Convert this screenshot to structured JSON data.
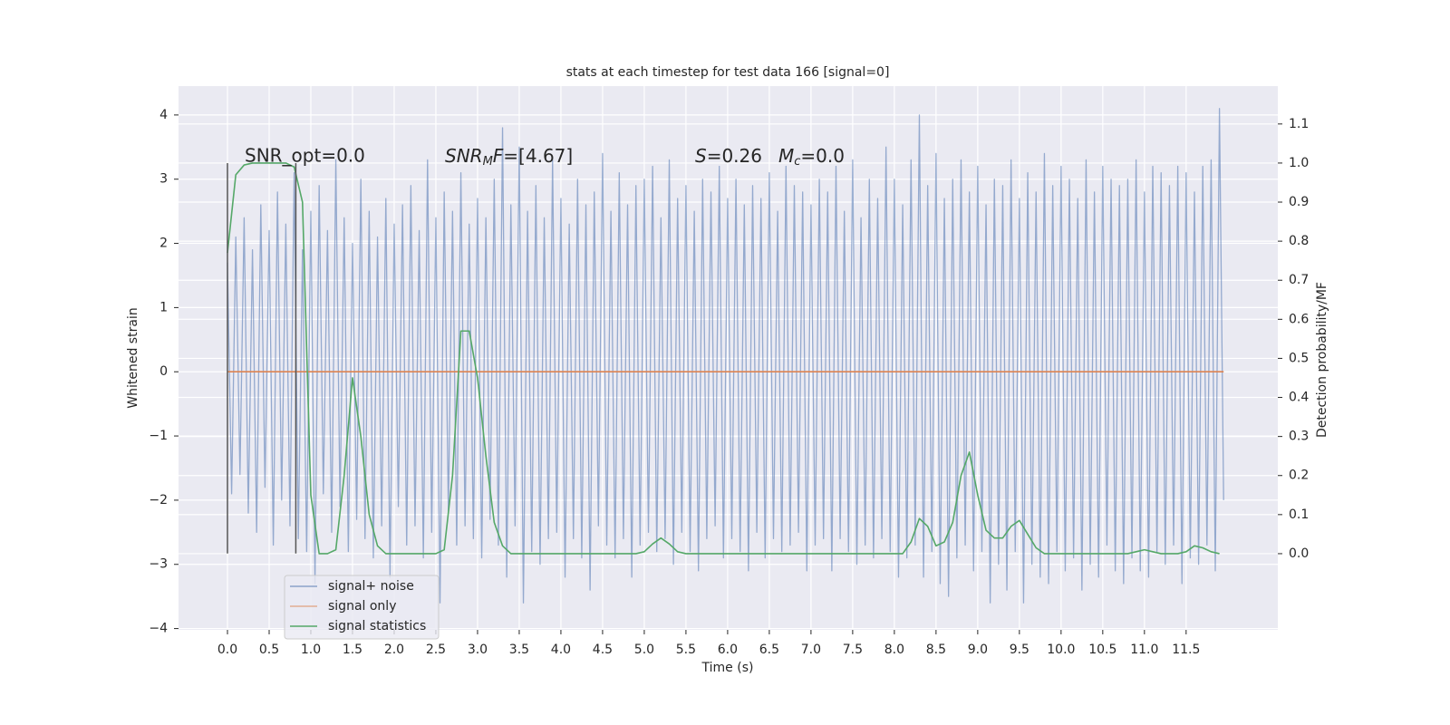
{
  "chart_data": {
    "type": "line",
    "title": "stats at each timestep for test data 166 [signal=0]",
    "x_label": "Time (s)",
    "y_label": "Whitened strain",
    "y2_label": "Detection probability/MF",
    "xlim": [
      -0.587,
      12.6
    ],
    "ylim": [
      -4.02,
      4.45
    ],
    "y2lim": [
      -0.195,
      1.197
    ],
    "xticks": [
      {
        "value": 0,
        "label": "0.0"
      },
      0.5,
      {
        "value": 1,
        "label": "1.0"
      },
      1.5,
      {
        "value": 2,
        "label": "2.0"
      },
      2.5,
      {
        "value": 3,
        "label": "3.0"
      },
      3.5,
      {
        "value": 4,
        "label": "4.0"
      },
      4.5,
      {
        "value": 5,
        "label": "5.0"
      },
      5.5,
      {
        "value": 6,
        "label": "6.0"
      },
      6.5,
      {
        "value": 7,
        "label": "7.0"
      },
      7.5,
      {
        "value": 8,
        "label": "8.0"
      },
      8.5,
      {
        "value": 9,
        "label": "9.0"
      },
      9.5,
      {
        "value": 10,
        "label": "10.0"
      },
      10.5,
      {
        "value": 11,
        "label": "11.0"
      },
      11.5
    ],
    "yticks": [
      {
        "value": -4,
        "label": "−4"
      },
      {
        "value": -3,
        "label": "−3"
      },
      {
        "value": -2,
        "label": "−2"
      },
      {
        "value": -1,
        "label": "−1"
      },
      0,
      1,
      2,
      3,
      4
    ],
    "y2ticks": [
      {
        "value": 0,
        "label": "0.0"
      },
      0.1,
      0.2,
      0.3,
      0.4,
      0.5,
      0.6,
      0.7,
      0.8,
      0.9,
      {
        "value": 1,
        "label": "1.0"
      },
      1.1
    ],
    "grid": true,
    "legend": "lower left",
    "annotations": [
      {
        "text": "SNR_opt=0.0"
      },
      {
        "parts": [
          "SNR",
          "M",
          "F",
          "=[4.67]"
        ]
      },
      {
        "parts": [
          "S",
          "=0.26"
        ]
      },
      {
        "parts": [
          "M",
          "c",
          "=0.0"
        ]
      }
    ],
    "vlines": {
      "x": [
        0,
        0.82
      ],
      "ymin": -2.83,
      "ymax": 3.25,
      "color": "#555555"
    },
    "series": [
      {
        "name": "signal+ noise",
        "color": "#4c72b0",
        "axis": "y",
        "x": [
          0,
          0.05,
          0.1,
          0.15,
          0.2,
          0.25,
          0.3,
          0.35,
          0.4,
          0.45,
          0.5,
          0.55,
          0.6,
          0.65,
          0.7,
          0.75,
          0.8,
          0.85,
          0.9,
          0.95,
          1,
          1.05,
          1.1,
          1.15,
          1.2,
          1.25,
          1.3,
          1.35,
          1.4,
          1.45,
          1.5,
          1.55,
          1.6,
          1.65,
          1.7,
          1.75,
          1.8,
          1.85,
          1.9,
          1.95,
          2,
          2.05,
          2.1,
          2.15,
          2.2,
          2.25,
          2.3,
          2.35,
          2.4,
          2.45,
          2.5,
          2.55,
          2.6,
          2.65,
          2.7,
          2.75,
          2.8,
          2.85,
          2.9,
          2.95,
          3,
          3.05,
          3.1,
          3.15,
          3.2,
          3.25,
          3.3,
          3.35,
          3.4,
          3.45,
          3.5,
          3.55,
          3.6,
          3.65,
          3.7,
          3.75,
          3.8,
          3.85,
          3.9,
          3.95,
          4,
          4.05,
          4.1,
          4.15,
          4.2,
          4.25,
          4.3,
          4.35,
          4.4,
          4.45,
          4.5,
          4.55,
          4.6,
          4.65,
          4.7,
          4.75,
          4.8,
          4.85,
          4.9,
          4.95,
          5,
          5.05,
          5.1,
          5.15,
          5.2,
          5.25,
          5.3,
          5.35,
          5.4,
          5.45,
          5.5,
          5.55,
          5.6,
          5.65,
          5.7,
          5.75,
          5.8,
          5.85,
          5.9,
          5.95,
          6,
          6.05,
          6.1,
          6.15,
          6.2,
          6.25,
          6.3,
          6.35,
          6.4,
          6.45,
          6.5,
          6.55,
          6.6,
          6.65,
          6.7,
          6.75,
          6.8,
          6.85,
          6.9,
          6.95,
          7,
          7.05,
          7.1,
          7.15,
          7.2,
          7.25,
          7.3,
          7.35,
          7.4,
          7.45,
          7.5,
          7.55,
          7.6,
          7.65,
          7.7,
          7.75,
          7.8,
          7.85,
          7.9,
          7.95,
          8,
          8.05,
          8.1,
          8.15,
          8.2,
          8.25,
          8.3,
          8.35,
          8.4,
          8.45,
          8.5,
          8.55,
          8.6,
          8.65,
          8.7,
          8.75,
          8.8,
          8.85,
          8.9,
          8.95,
          9,
          9.05,
          9.1,
          9.15,
          9.2,
          9.25,
          9.3,
          9.35,
          9.4,
          9.45,
          9.5,
          9.55,
          9.6,
          9.65,
          9.7,
          9.75,
          9.8,
          9.85,
          9.9,
          9.95,
          10,
          10.05,
          10.1,
          10.15,
          10.2,
          10.25,
          10.3,
          10.35,
          10.4,
          10.45,
          10.5,
          10.55,
          10.6,
          10.65,
          10.7,
          10.75,
          10.8,
          10.85,
          10.9,
          10.95,
          11,
          11.05,
          11.1,
          11.15,
          11.2,
          11.25,
          11.3,
          11.35,
          11.4,
          11.45,
          11.5,
          11.55,
          11.6,
          11.65,
          11.7,
          11.75,
          11.8,
          11.85,
          11.9,
          11.95
        ],
        "values": [
          1.7,
          -1.9,
          2.1,
          -1.6,
          2.4,
          -2.2,
          1.9,
          -2.5,
          2.6,
          -1.8,
          2.2,
          -2.7,
          2.8,
          -2.0,
          2.3,
          -2.4,
          3.1,
          -2.6,
          1.9,
          -2.8,
          2.5,
          -3.3,
          2.9,
          -1.9,
          2.2,
          -2.5,
          3.3,
          -2.1,
          2.4,
          -2.8,
          2.0,
          -2.3,
          3.0,
          -2.6,
          2.5,
          -2.9,
          2.1,
          -2.4,
          2.7,
          -3.2,
          2.3,
          -2.1,
          2.6,
          -2.7,
          2.9,
          -2.4,
          2.2,
          -2.9,
          3.3,
          -2.5,
          2.4,
          -3.6,
          2.8,
          -2.2,
          2.5,
          -2.7,
          3.1,
          -2.4,
          2.3,
          -2.6,
          2.7,
          -2.9,
          2.4,
          -2.3,
          3.0,
          -2.7,
          3.8,
          -3.2,
          2.6,
          -2.4,
          3.5,
          -3.6,
          2.5,
          -2.8,
          2.9,
          -3.0,
          2.4,
          -2.6,
          3.3,
          -2.5,
          2.7,
          -3.2,
          2.3,
          -2.6,
          3.0,
          -2.9,
          2.6,
          -3.4,
          2.8,
          -2.4,
          3.4,
          -2.7,
          2.5,
          -2.9,
          3.1,
          -2.6,
          2.6,
          -3.2,
          2.9,
          -2.7,
          3.0,
          -2.5,
          3.2,
          -2.8,
          2.4,
          -2.6,
          3.3,
          -3.0,
          2.7,
          -2.5,
          2.9,
          -2.8,
          2.5,
          -3.1,
          3.0,
          -2.6,
          2.8,
          -2.4,
          3.2,
          -2.9,
          2.7,
          -2.6,
          3.0,
          -2.8,
          2.6,
          -3.1,
          2.9,
          -2.5,
          2.7,
          -2.9,
          3.1,
          -2.6,
          2.5,
          -2.8,
          3.2,
          -2.7,
          2.9,
          -2.5,
          2.8,
          -3.1,
          2.6,
          -2.7,
          3.0,
          -2.6,
          2.8,
          -3.1,
          3.2,
          -2.6,
          2.5,
          -2.8,
          3.3,
          -3.0,
          2.4,
          -2.7,
          3.0,
          -2.9,
          2.7,
          -2.6,
          3.5,
          -2.8,
          3.0,
          -3.2,
          2.6,
          -2.9,
          3.3,
          -2.7,
          4.0,
          -3.2,
          2.9,
          -2.8,
          3.4,
          -3.3,
          2.7,
          -3.5,
          3.0,
          -2.9,
          3.3,
          -2.7,
          2.8,
          -3.1,
          3.2,
          -2.8,
          2.6,
          -3.6,
          3.0,
          -3.0,
          2.9,
          -3.4,
          3.3,
          -2.8,
          2.7,
          -3.6,
          3.1,
          -3.0,
          2.8,
          -3.2,
          3.4,
          -3.3,
          2.9,
          -2.8,
          3.2,
          -3.1,
          3.0,
          -2.9,
          2.7,
          -3.4,
          3.3,
          -3.0,
          2.8,
          -3.2,
          3.2,
          -2.7,
          3.0,
          -3.1,
          2.9,
          -3.3,
          3.0,
          -2.9,
          3.3,
          -3.1,
          2.8,
          -3.2,
          3.2,
          -2.8,
          3.1,
          -3.0,
          2.9,
          -2.7,
          3.2,
          -3.3,
          3.1,
          -2.9,
          2.8,
          -3.0,
          3.2,
          -2.7,
          3.3,
          -3.1,
          4.1,
          -2.0
        ]
      },
      {
        "name": "signal only",
        "color": "#dd8452",
        "axis": "y",
        "x": [
          0,
          11.95
        ],
        "values": [
          0,
          0
        ]
      },
      {
        "name": "signal statistics",
        "color": "#55a868",
        "axis": "y2",
        "x": [
          0,
          0.1,
          0.2,
          0.3,
          0.4,
          0.5,
          0.6,
          0.7,
          0.8,
          0.9,
          1,
          1.1,
          1.2,
          1.3,
          1.4,
          1.5,
          1.6,
          1.7,
          1.8,
          1.9,
          2,
          2.1,
          2.2,
          2.3,
          2.4,
          2.5,
          2.6,
          2.7,
          2.8,
          2.9,
          3,
          3.1,
          3.2,
          3.3,
          3.4,
          3.5,
          3.6,
          3.7,
          3.8,
          3.9,
          4,
          4.1,
          4.2,
          4.3,
          4.4,
          4.5,
          4.6,
          4.7,
          4.8,
          4.9,
          5,
          5.1,
          5.2,
          5.3,
          5.4,
          5.5,
          5.6,
          5.7,
          5.8,
          5.9,
          6,
          6.1,
          6.2,
          6.3,
          6.4,
          6.5,
          6.6,
          6.7,
          6.8,
          6.9,
          7,
          7.1,
          7.2,
          7.3,
          7.4,
          7.5,
          7.6,
          7.7,
          7.8,
          7.9,
          8,
          8.1,
          8.2,
          8.3,
          8.4,
          8.5,
          8.6,
          8.7,
          8.8,
          8.9,
          9,
          9.1,
          9.2,
          9.3,
          9.4,
          9.5,
          9.6,
          9.7,
          9.8,
          9.9,
          10,
          10.1,
          10.2,
          10.3,
          10.4,
          10.5,
          10.6,
          10.7,
          10.8,
          10.9,
          11,
          11.1,
          11.2,
          11.3,
          11.4,
          11.5,
          11.6,
          11.7,
          11.8,
          11.9
        ],
        "values": [
          0.77,
          0.97,
          0.995,
          1,
          1,
          1,
          1,
          1,
          0.99,
          0.9,
          0.15,
          0,
          0,
          0.01,
          0.2,
          0.45,
          0.3,
          0.1,
          0.02,
          0,
          0,
          0,
          0,
          0,
          0,
          0,
          0.01,
          0.2,
          0.57,
          0.57,
          0.45,
          0.25,
          0.08,
          0.02,
          0,
          0,
          0,
          0,
          0,
          0,
          0,
          0,
          0,
          0,
          0,
          0,
          0,
          0,
          0,
          0,
          0.005,
          0.025,
          0.04,
          0.025,
          0.005,
          0,
          0,
          0,
          0,
          0,
          0,
          0,
          0,
          0,
          0,
          0,
          0,
          0,
          0,
          0,
          0,
          0,
          0,
          0,
          0,
          0,
          0,
          0,
          0,
          0,
          0,
          0,
          0.03,
          0.09,
          0.07,
          0.02,
          0.03,
          0.08,
          0.2,
          0.26,
          0.15,
          0.06,
          0.04,
          0.04,
          0.07,
          0.085,
          0.05,
          0.015,
          0,
          0,
          0,
          0,
          0,
          0,
          0,
          0,
          0,
          0,
          0,
          0.005,
          0.01,
          0.005,
          0,
          0,
          0,
          0.005,
          0.02,
          0.015,
          0.005,
          0
        ]
      }
    ]
  }
}
